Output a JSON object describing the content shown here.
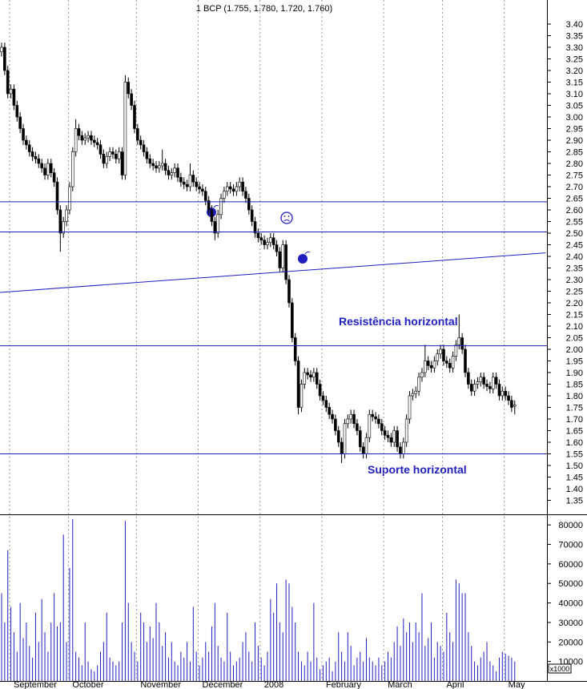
{
  "chart_data": [
    {
      "type": "candlestick",
      "title": "1 BCP (1.755, 1.780, 1.720, 1.760)",
      "annotations": [
        "Resistência horizontal",
        "Suporte horizontal"
      ],
      "categories": [
        null,
        null,
        null,
        "September",
        null,
        null,
        null,
        null,
        null,
        null,
        null,
        null,
        null,
        null,
        null,
        null,
        null,
        null,
        null,
        null,
        null,
        null,
        "October",
        null,
        null,
        null,
        null,
        null,
        null,
        null,
        null,
        null,
        null,
        null,
        null,
        null,
        null,
        null,
        null,
        null,
        null,
        null,
        null,
        null,
        "November",
        null,
        null,
        null,
        null,
        null,
        null,
        null,
        null,
        null,
        null,
        null,
        null,
        null,
        null,
        null,
        null,
        null,
        null,
        null,
        "December",
        null,
        null,
        null,
        null,
        null,
        null,
        null,
        null,
        null,
        null,
        null,
        null,
        null,
        null,
        null,
        null,
        null,
        null,
        null,
        "2008",
        null,
        null,
        null,
        null,
        null,
        null,
        null,
        null,
        null,
        null,
        null,
        null,
        null,
        null,
        null,
        null,
        null,
        null,
        null,
        "February",
        null,
        null,
        null,
        null,
        null,
        null,
        null,
        null,
        null,
        null,
        null,
        null,
        null,
        null,
        null,
        null,
        null,
        null,
        null,
        "March",
        null,
        null,
        null,
        null,
        null,
        null,
        null,
        null,
        null,
        null,
        null,
        null,
        null,
        null,
        null,
        null,
        null,
        null,
        "April",
        null,
        null,
        null,
        null,
        null,
        null,
        null,
        null,
        null,
        null,
        null,
        null,
        null,
        null,
        null,
        null,
        null,
        null,
        null,
        "May",
        null,
        null,
        null
      ],
      "open": [
        3.28,
        3.3,
        3.2,
        3.1,
        3.12,
        3.05,
        3.0,
        2.95,
        2.9,
        2.88,
        2.85,
        2.83,
        2.82,
        2.8,
        2.78,
        2.75,
        2.8,
        2.76,
        2.72,
        2.6,
        2.5,
        2.55,
        2.6,
        2.7,
        2.85,
        2.95,
        2.92,
        2.9,
        2.91,
        2.92,
        2.9,
        2.89,
        2.88,
        2.84,
        2.8,
        2.83,
        2.85,
        2.84,
        2.82,
        2.85,
        2.75,
        3.15,
        3.1,
        3.05,
        2.95,
        2.9,
        2.88,
        2.85,
        2.82,
        2.8,
        2.79,
        2.78,
        2.79,
        2.8,
        2.77,
        2.75,
        2.76,
        2.78,
        2.74,
        2.72,
        2.71,
        2.7,
        2.75,
        2.72,
        2.7,
        2.69,
        2.68,
        2.64,
        2.6,
        2.55,
        2.5,
        2.58,
        2.65,
        2.68,
        2.7,
        2.69,
        2.68,
        2.7,
        2.72,
        2.68,
        2.65,
        2.6,
        2.55,
        2.5,
        2.48,
        2.47,
        2.45,
        2.46,
        2.48,
        2.45,
        2.42,
        2.35,
        2.45,
        2.3,
        2.2,
        2.05,
        1.95,
        1.75,
        1.85,
        1.9,
        1.89,
        1.88,
        1.9,
        1.85,
        1.8,
        1.78,
        1.75,
        1.72,
        1.7,
        1.65,
        1.6,
        1.55,
        1.68,
        1.7,
        1.72,
        1.68,
        1.65,
        1.58,
        1.55,
        1.62,
        1.72,
        1.71,
        1.7,
        1.68,
        1.65,
        1.63,
        1.62,
        1.6,
        1.65,
        1.58,
        1.55,
        1.6,
        1.7,
        1.8,
        1.81,
        1.82,
        1.88,
        1.9,
        1.95,
        1.93,
        1.92,
        1.95,
        1.98,
        2.0,
        1.95,
        1.94,
        1.92,
        1.97,
        2.02,
        2.05,
        2.0,
        1.9,
        1.85,
        1.82,
        1.85,
        1.86,
        1.88,
        1.85,
        1.84,
        1.83,
        1.88,
        1.85,
        1.8,
        1.82,
        1.8,
        1.78,
        1.755
      ],
      "high": [
        3.32,
        3.32,
        3.22,
        3.14,
        3.14,
        3.07,
        3.02,
        2.97,
        2.92,
        2.9,
        2.87,
        2.85,
        2.84,
        2.82,
        2.8,
        2.82,
        2.82,
        2.78,
        2.74,
        2.62,
        2.57,
        2.62,
        2.72,
        2.87,
        2.99,
        2.97,
        2.94,
        2.93,
        2.94,
        2.94,
        2.92,
        2.91,
        2.9,
        2.86,
        2.85,
        2.87,
        2.87,
        2.86,
        2.87,
        2.87,
        3.18,
        3.17,
        3.12,
        3.07,
        2.97,
        2.92,
        2.9,
        2.87,
        2.84,
        2.82,
        2.81,
        2.81,
        2.86,
        2.82,
        2.79,
        2.78,
        2.8,
        2.8,
        2.76,
        2.74,
        2.73,
        2.8,
        2.77,
        2.74,
        2.72,
        2.71,
        2.7,
        2.66,
        2.62,
        2.57,
        2.6,
        2.67,
        2.7,
        2.72,
        2.72,
        2.71,
        2.72,
        2.74,
        2.74,
        2.7,
        2.67,
        2.62,
        2.57,
        2.52,
        2.5,
        2.49,
        2.48,
        2.5,
        2.5,
        2.47,
        2.44,
        2.47,
        2.47,
        2.32,
        2.22,
        2.07,
        1.97,
        1.87,
        1.92,
        1.92,
        1.91,
        1.92,
        1.92,
        1.87,
        1.82,
        1.8,
        1.77,
        1.74,
        1.72,
        1.67,
        1.62,
        1.7,
        1.72,
        1.74,
        1.74,
        1.7,
        1.67,
        1.6,
        1.64,
        1.74,
        1.74,
        1.73,
        1.72,
        1.7,
        1.67,
        1.65,
        1.64,
        1.67,
        1.67,
        1.6,
        1.62,
        1.72,
        1.82,
        1.83,
        1.84,
        1.9,
        1.92,
        2.02,
        1.97,
        1.95,
        1.97,
        2.0,
        2.02,
        2.02,
        1.97,
        1.96,
        1.99,
        2.04,
        2.15,
        2.07,
        2.02,
        1.92,
        1.87,
        1.87,
        1.88,
        1.9,
        1.9,
        1.87,
        1.86,
        1.9,
        1.9,
        1.87,
        1.84,
        1.84,
        1.82,
        1.8,
        1.78
      ],
      "low": [
        3.26,
        3.18,
        3.08,
        3.08,
        3.03,
        2.98,
        2.93,
        2.88,
        2.86,
        2.83,
        2.81,
        2.8,
        2.78,
        2.76,
        2.73,
        2.73,
        2.74,
        2.7,
        2.58,
        2.42,
        2.48,
        2.53,
        2.58,
        2.68,
        2.83,
        2.9,
        2.88,
        2.88,
        2.89,
        2.88,
        2.87,
        2.86,
        2.82,
        2.78,
        2.78,
        2.81,
        2.82,
        2.8,
        2.8,
        2.73,
        2.73,
        3.08,
        3.03,
        2.93,
        2.88,
        2.86,
        2.83,
        2.8,
        2.78,
        2.77,
        2.76,
        2.76,
        2.77,
        2.75,
        2.73,
        2.73,
        2.74,
        2.72,
        2.7,
        2.69,
        2.68,
        2.68,
        2.7,
        2.68,
        2.67,
        2.66,
        2.62,
        2.58,
        2.53,
        2.47,
        2.48,
        2.56,
        2.63,
        2.66,
        2.67,
        2.66,
        2.66,
        2.68,
        2.66,
        2.63,
        2.58,
        2.53,
        2.48,
        2.46,
        2.45,
        2.43,
        2.43,
        2.44,
        2.43,
        2.4,
        2.33,
        2.33,
        2.28,
        2.18,
        2.03,
        1.93,
        1.72,
        1.73,
        1.83,
        1.87,
        1.86,
        1.86,
        1.83,
        1.78,
        1.76,
        1.73,
        1.7,
        1.68,
        1.63,
        1.58,
        1.51,
        1.53,
        1.66,
        1.68,
        1.66,
        1.63,
        1.56,
        1.53,
        1.53,
        1.6,
        1.69,
        1.68,
        1.66,
        1.63,
        1.61,
        1.6,
        1.58,
        1.58,
        1.56,
        1.53,
        1.53,
        1.58,
        1.68,
        1.78,
        1.79,
        1.8,
        1.86,
        1.88,
        1.91,
        1.9,
        1.9,
        1.93,
        1.96,
        1.93,
        1.92,
        1.9,
        1.9,
        1.95,
        2.0,
        1.98,
        1.88,
        1.83,
        1.8,
        1.8,
        1.83,
        1.84,
        1.83,
        1.82,
        1.81,
        1.81,
        1.83,
        1.78,
        1.78,
        1.78,
        1.76,
        1.73,
        1.72
      ],
      "close": [
        3.3,
        3.2,
        3.1,
        3.12,
        3.05,
        3.0,
        2.95,
        2.9,
        2.88,
        2.85,
        2.83,
        2.82,
        2.8,
        2.78,
        2.75,
        2.8,
        2.76,
        2.72,
        2.6,
        2.5,
        2.55,
        2.6,
        2.7,
        2.85,
        2.95,
        2.92,
        2.9,
        2.91,
        2.92,
        2.9,
        2.89,
        2.88,
        2.84,
        2.8,
        2.83,
        2.85,
        2.84,
        2.82,
        2.85,
        2.75,
        3.15,
        3.1,
        3.05,
        2.95,
        2.9,
        2.88,
        2.85,
        2.82,
        2.8,
        2.79,
        2.78,
        2.79,
        2.8,
        2.77,
        2.75,
        2.76,
        2.78,
        2.74,
        2.72,
        2.71,
        2.7,
        2.75,
        2.72,
        2.7,
        2.69,
        2.68,
        2.64,
        2.6,
        2.55,
        2.5,
        2.58,
        2.65,
        2.68,
        2.7,
        2.69,
        2.68,
        2.7,
        2.72,
        2.68,
        2.65,
        2.6,
        2.55,
        2.5,
        2.48,
        2.47,
        2.45,
        2.46,
        2.48,
        2.45,
        2.42,
        2.35,
        2.45,
        2.3,
        2.2,
        2.05,
        1.95,
        1.75,
        1.85,
        1.9,
        1.89,
        1.88,
        1.9,
        1.85,
        1.8,
        1.78,
        1.75,
        1.72,
        1.7,
        1.65,
        1.6,
        1.55,
        1.68,
        1.7,
        1.72,
        1.68,
        1.65,
        1.58,
        1.55,
        1.62,
        1.72,
        1.71,
        1.7,
        1.68,
        1.65,
        1.63,
        1.62,
        1.6,
        1.65,
        1.58,
        1.55,
        1.6,
        1.7,
        1.8,
        1.81,
        1.82,
        1.88,
        1.9,
        1.95,
        1.93,
        1.92,
        1.95,
        1.98,
        2.0,
        1.95,
        1.94,
        1.92,
        1.97,
        2.02,
        2.05,
        2.0,
        1.9,
        1.85,
        1.82,
        1.85,
        1.86,
        1.88,
        1.85,
        1.84,
        1.83,
        1.88,
        1.85,
        1.8,
        1.82,
        1.8,
        1.78,
        1.75,
        1.76
      ],
      "up_color": "#ffffff",
      "down_color": "#000000",
      "line_color": "#1f1fbf",
      "hlines": [
        2.635,
        2.505,
        2.015,
        1.55
      ],
      "trendline": {
        "x": [
          0,
          176
        ],
        "y": [
          2.245,
          2.415
        ]
      },
      "ylim": [
        1.3,
        3.5
      ],
      "yticks": [
        {
          "value": 3.4,
          "label": "3.40"
        },
        3.35,
        {
          "value": 3.3,
          "label": "3.30"
        },
        3.25,
        {
          "value": 3.2,
          "label": "3.20"
        },
        3.15,
        {
          "value": 3.1,
          "label": "3.10"
        },
        3.05,
        {
          "value": 3,
          "label": "3.00"
        },
        2.95,
        {
          "value": 2.9,
          "label": "2.90"
        },
        2.85,
        {
          "value": 2.8,
          "label": "2.80"
        },
        2.75,
        {
          "value": 2.7,
          "label": "2.70"
        },
        2.65,
        {
          "value": 2.6,
          "label": "2.60"
        },
        2.55,
        {
          "value": 2.5,
          "label": "2.50"
        },
        2.45,
        {
          "value": 2.4,
          "label": "2.40"
        },
        2.35,
        {
          "value": 2.3,
          "label": "2.30"
        },
        2.25,
        {
          "value": 2.2,
          "label": "2.20"
        },
        2.15,
        {
          "value": 2.1,
          "label": "2.10"
        },
        2.05,
        {
          "value": 2,
          "label": "2.00"
        },
        1.95,
        {
          "value": 1.9,
          "label": "1.90"
        },
        1.85,
        {
          "value": 1.8,
          "label": "1.80"
        },
        1.75,
        {
          "value": 1.7,
          "label": "1.70"
        },
        1.65,
        {
          "value": 1.6,
          "label": "1.60"
        },
        1.55,
        {
          "value": 1.5,
          "label": "1.50"
        },
        1.45,
        {
          "value": 1.4,
          "label": "1.40"
        },
        1.35
      ]
    },
    {
      "type": "bar",
      "unit_label": "x1000",
      "color": "#2020c0",
      "values": [
        45000,
        30000,
        67000,
        38000,
        25000,
        15000,
        40000,
        22000,
        30000,
        18000,
        12000,
        35000,
        20000,
        42000,
        25000,
        15000,
        30000,
        45000,
        28000,
        30000,
        75000,
        20000,
        58000,
        83000,
        15000,
        12000,
        8000,
        30000,
        10000,
        6000,
        5000,
        8000,
        15000,
        20000,
        35000,
        12000,
        10000,
        8000,
        10000,
        30000,
        82000,
        40000,
        20000,
        15000,
        10000,
        35000,
        30000,
        20000,
        28000,
        22000,
        40000,
        30000,
        18000,
        25000,
        12000,
        20000,
        10000,
        8000,
        15000,
        12000,
        20000,
        10000,
        38000,
        15000,
        8000,
        12000,
        20000,
        15000,
        28000,
        40000,
        18000,
        12000,
        10000,
        35000,
        15000,
        8000,
        10000,
        12000,
        20000,
        25000,
        15000,
        10000,
        30000,
        18000,
        12000,
        8000,
        15000,
        42000,
        35000,
        50000,
        30000,
        25000,
        52000,
        50000,
        38000,
        30000,
        15000,
        10000,
        8000,
        15000,
        10000,
        40000,
        12000,
        6000,
        8000,
        10000,
        12000,
        5000,
        10000,
        25000,
        15000,
        10000,
        25000,
        18000,
        8000,
        12000,
        15000,
        10000,
        22000,
        12000,
        10000,
        8000,
        12000,
        8000,
        10000,
        15000,
        12000,
        20000,
        28000,
        18000,
        32000,
        25000,
        30000,
        20000,
        30000,
        25000,
        45000,
        18000,
        22000,
        30000,
        12000,
        20000,
        18000,
        15000,
        35000,
        25000,
        20000,
        52000,
        50000,
        45000,
        45000,
        25000,
        18000,
        10000,
        8000,
        12000,
        15000,
        20000,
        10000,
        8000,
        5000,
        12000,
        15000,
        14000,
        13000,
        12000,
        10000
      ],
      "ylim": [
        0,
        85000
      ],
      "yticks": [
        10000,
        20000,
        30000,
        40000,
        50000,
        60000,
        70000,
        80000
      ]
    }
  ]
}
